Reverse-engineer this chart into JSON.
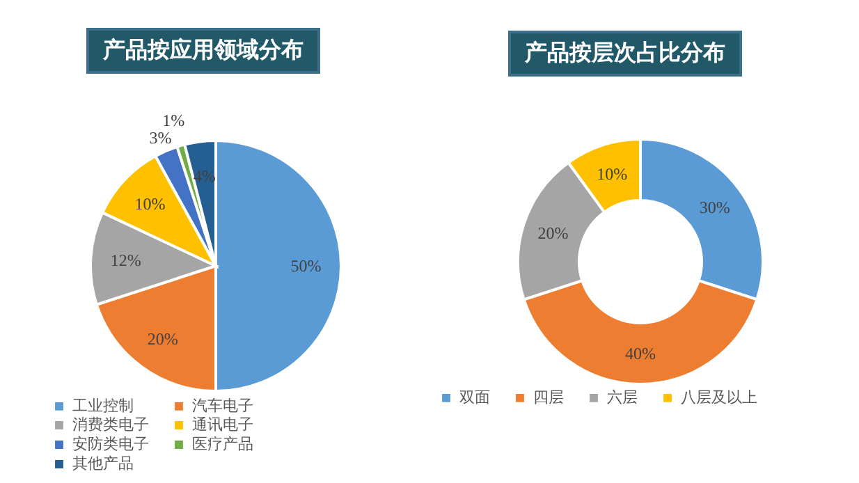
{
  "chart_data": [
    {
      "type": "pie",
      "title": "产品按应用领域分布",
      "categories": [
        "工业控制",
        "汽车电子",
        "消费类电子",
        "通讯电子",
        "安防类电子",
        "医疗产品",
        "其他产品"
      ],
      "values": [
        50,
        20,
        12,
        10,
        3,
        1,
        4
      ],
      "colors": [
        "#5b9bd5",
        "#ed7d31",
        "#a5a5a5",
        "#ffc000",
        "#4472c4",
        "#70ad47",
        "#255e91"
      ],
      "value_labels": [
        "50%",
        "20%",
        "12%",
        "10%",
        "3%",
        "1%",
        "4%"
      ],
      "legend": "bottom"
    },
    {
      "type": "donut",
      "title": "产品按层次占比分布",
      "categories": [
        "双面",
        "四层",
        "六层",
        "八层及以上"
      ],
      "values": [
        30,
        40,
        20,
        10
      ],
      "colors": [
        "#5b9bd5",
        "#ed7d31",
        "#a5a5a5",
        "#ffc000"
      ],
      "value_labels": [
        "30%",
        "40%",
        "20%",
        "10%"
      ],
      "legend": "bottom"
    }
  ]
}
